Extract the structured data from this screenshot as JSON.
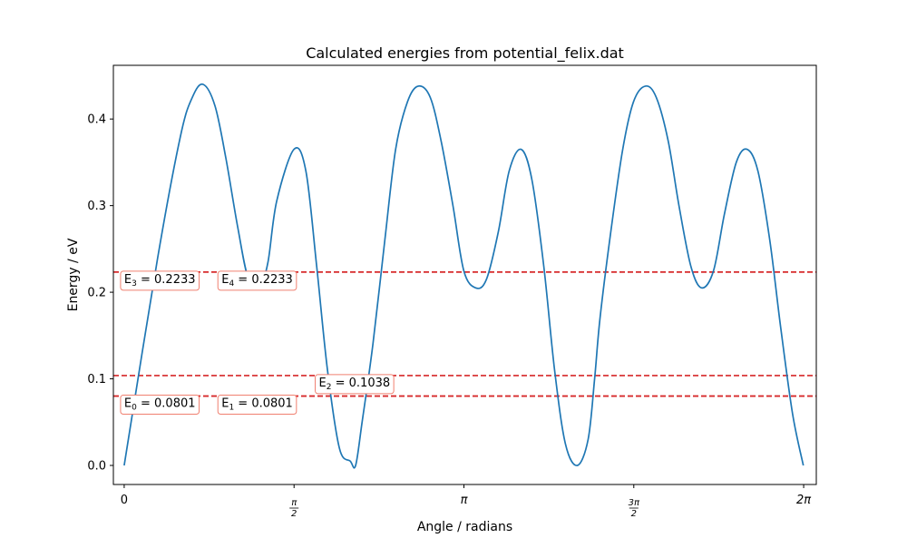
{
  "chart_data": {
    "type": "line",
    "title": "Calculated energies from potential_felix.dat",
    "xlabel": "Angle / radians",
    "ylabel": "Energy / eV",
    "xlim": [
      -0.1,
      6.4
    ],
    "ylim": [
      -0.022,
      0.462
    ],
    "grid": false,
    "x_ticks": [
      {
        "value": 0,
        "label": "0",
        "kind": "plain"
      },
      {
        "value": 1.5708,
        "label": "π/2",
        "num": "π",
        "den": "2",
        "kind": "frac"
      },
      {
        "value": 3.1416,
        "label": "π",
        "kind": "pi"
      },
      {
        "value": 4.7124,
        "label": "3π/2",
        "num": "3π",
        "den": "2",
        "kind": "frac"
      },
      {
        "value": 6.2832,
        "label": "2π",
        "kind": "pi"
      }
    ],
    "y_ticks": [
      {
        "value": 0.0,
        "label": "0.0"
      },
      {
        "value": 0.1,
        "label": "0.1"
      },
      {
        "value": 0.2,
        "label": "0.2"
      },
      {
        "value": 0.3,
        "label": "0.3"
      },
      {
        "value": 0.4,
        "label": "0.4"
      }
    ],
    "series": [
      {
        "color": "#1f77b4",
        "x": [
          0.0,
          0.31,
          0.52,
          0.63,
          0.73,
          0.84,
          0.94,
          1.05,
          1.15,
          1.26,
          1.33,
          1.41,
          1.57,
          1.68,
          1.78,
          1.88,
          1.99,
          2.09,
          2.14,
          2.2,
          2.3,
          2.41,
          2.51,
          2.62,
          2.72,
          2.83,
          2.93,
          3.04,
          3.14,
          3.25,
          3.35,
          3.46,
          3.56,
          3.67,
          3.77,
          3.88,
          3.98,
          4.08,
          4.19,
          4.29,
          4.35,
          4.4,
          4.5,
          4.61,
          4.71,
          4.82,
          4.92,
          5.03,
          5.13,
          5.24,
          5.34,
          5.45,
          5.55,
          5.66,
          5.76,
          5.86,
          5.97,
          6.07,
          6.18,
          6.28
        ],
        "y": [
          0.0,
          0.24,
          0.38,
          0.425,
          0.44,
          0.415,
          0.355,
          0.275,
          0.215,
          0.21,
          0.235,
          0.305,
          0.365,
          0.34,
          0.23,
          0.11,
          0.02,
          0.005,
          0.0,
          0.05,
          0.14,
          0.26,
          0.365,
          0.42,
          0.438,
          0.425,
          0.375,
          0.3,
          0.225,
          0.205,
          0.215,
          0.27,
          0.34,
          0.365,
          0.33,
          0.23,
          0.11,
          0.025,
          0.0,
          0.03,
          0.1,
          0.17,
          0.27,
          0.365,
          0.42,
          0.438,
          0.425,
          0.375,
          0.3,
          0.23,
          0.205,
          0.225,
          0.29,
          0.35,
          0.365,
          0.34,
          0.26,
          0.16,
          0.06,
          0.0
        ]
      }
    ],
    "energy_levels": [
      {
        "value": 0.0801,
        "sub": "0",
        "text": " = 0.0801",
        "label_x": 0.0,
        "label_y": 0.0801
      },
      {
        "value": 0.0801,
        "sub": "1",
        "text": " = 0.0801",
        "label_x": 0.9,
        "label_y": 0.0801
      },
      {
        "value": 0.1038,
        "sub": "2",
        "text": " = 0.1038",
        "label_x": 1.8,
        "label_y": 0.1038
      },
      {
        "value": 0.2233,
        "sub": "3",
        "text": " = 0.2233",
        "label_x": 0.0,
        "label_y": 0.2233
      },
      {
        "value": 0.2233,
        "sub": "4",
        "text": " = 0.2233",
        "label_x": 0.9,
        "label_y": 0.2233
      }
    ],
    "energy_prefix": "E",
    "line_color": "#d62728",
    "box_edge_color": "#f08070"
  }
}
